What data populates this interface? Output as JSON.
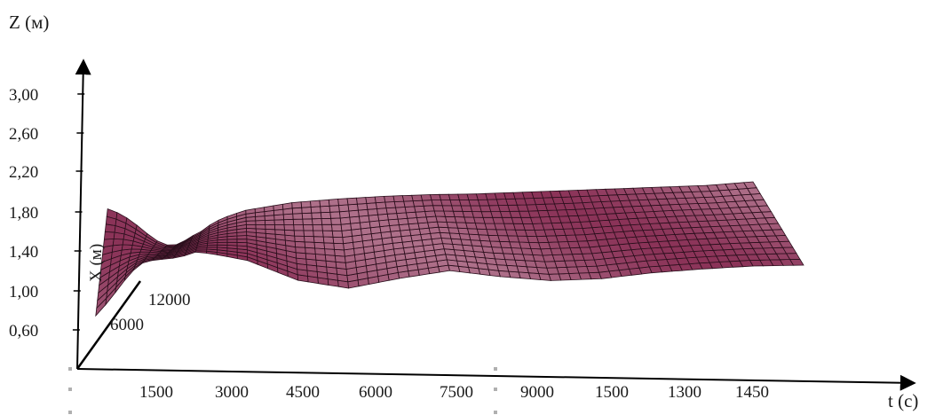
{
  "chart_data": {
    "type": "surface",
    "zlabel": "Z (м)",
    "xlabel": "t (с)",
    "ylabel": "X (м)",
    "z_ticks": [
      "0,60",
      "1,00",
      "1,40",
      "1,80",
      "2,20",
      "2,60",
      "3,00"
    ],
    "t_ticks": [
      "1500",
      "3000",
      "4500",
      "6000",
      "7500",
      "9000",
      "1500",
      "1300",
      "1450"
    ],
    "x_ticks": [
      "6000",
      "12000"
    ],
    "surface": {
      "color": "#8b3358",
      "front_edge_z": [
        [
          0,
          0.72
        ],
        [
          1,
          1.18
        ],
        [
          2,
          1.4
        ],
        [
          3,
          1.3
        ],
        [
          4,
          1.1
        ],
        [
          5,
          1.02
        ],
        [
          6,
          1.12
        ],
        [
          7,
          1.2
        ],
        [
          8,
          1.14
        ],
        [
          9,
          1.1
        ],
        [
          10,
          1.12
        ],
        [
          11,
          1.18
        ],
        [
          12,
          1.22
        ],
        [
          13,
          1.25
        ],
        [
          14,
          1.26
        ]
      ],
      "back_edge_z": [
        [
          0,
          1.8
        ],
        [
          1,
          1.72
        ],
        [
          2,
          1.64
        ],
        [
          3,
          1.78
        ],
        [
          4,
          1.86
        ],
        [
          5,
          1.9
        ],
        [
          6,
          1.93
        ],
        [
          7,
          1.95
        ],
        [
          8,
          1.96
        ],
        [
          9,
          1.98
        ],
        [
          10,
          2.0
        ],
        [
          11,
          2.02
        ],
        [
          12,
          2.04
        ],
        [
          13,
          2.06
        ],
        [
          14,
          2.1
        ]
      ]
    }
  }
}
